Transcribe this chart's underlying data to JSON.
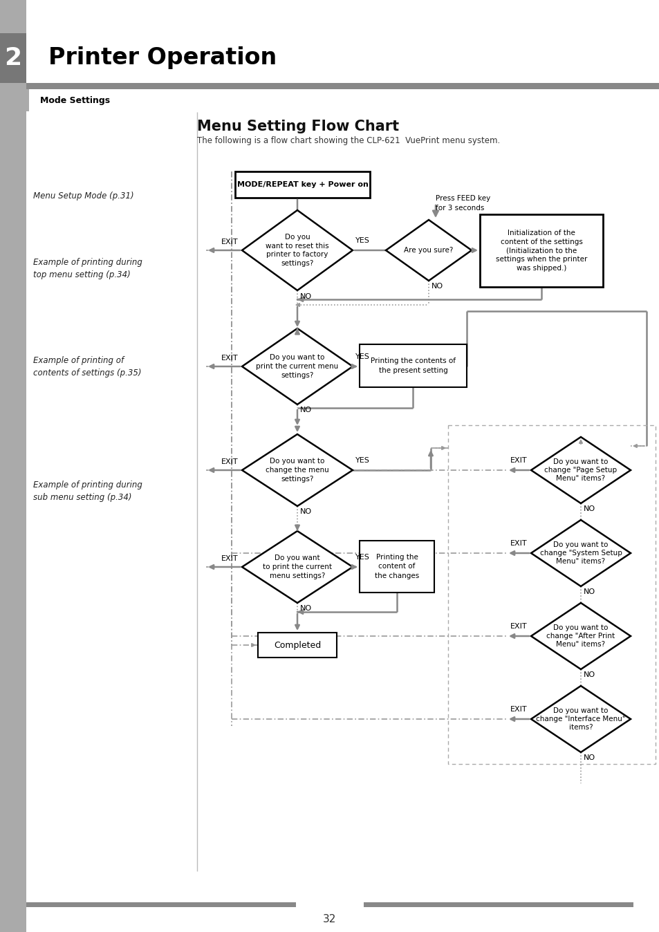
{
  "title": "Printer Operation",
  "chapter_num": "2",
  "section": "Mode Settings",
  "flowchart_title": "Menu Setting Flow Chart",
  "flowchart_subtitle": "The following is a flow chart showing the CLP-621  VuePrint menu system.",
  "page_num": "32",
  "bg_color": "#ffffff",
  "arrow_color": "#888888",
  "dash_color": "#999999",
  "left_bar_color": "#999999",
  "header_bar_color": "#888888",
  "chapter_block_color": "#888888",
  "left_labels": [
    [
      "Menu Setup Mode (p.31)",
      283
    ],
    [
      "Example of printing during\ntop menu setting (p.34)",
      388
    ],
    [
      "Example of printing of\ncontents of settings (p.35)",
      530
    ],
    [
      "Example of printing during\nsub menu setting (p.34)",
      710
    ]
  ]
}
